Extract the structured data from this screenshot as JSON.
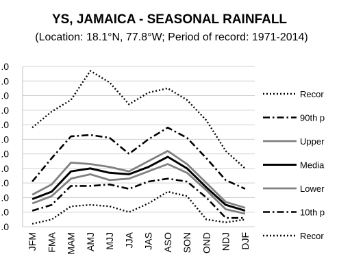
{
  "chart_data": {
    "type": "line",
    "title": "YS, JAMAICA - SEASONAL RAINFALL",
    "subtitle": "(Location: 18.1°N, 77.8°W; Period of record: 1971-2014)",
    "categories": [
      "JFM",
      "FMA",
      "MAM",
      "AMJ",
      "MJJ",
      "JJA",
      "JAS",
      "ASO",
      "SON",
      "OND",
      "NDJ",
      "DJF"
    ],
    "ylim": [
      0,
      1.1
    ],
    "ytick_labels": [
      ".0",
      ".0",
      ".0",
      ".0",
      ".0",
      ".0",
      ".0",
      ".0",
      ".0",
      ".0",
      ".0",
      ".0"
    ],
    "grid": true,
    "legend_position": "right",
    "series": [
      {
        "name": "Recor",
        "style": "dotted",
        "color": "#000000",
        "values": [
          0.68,
          0.79,
          0.87,
          1.07,
          0.99,
          0.84,
          0.92,
          0.95,
          0.87,
          0.73,
          0.52,
          0.4
        ]
      },
      {
        "name": "90th p",
        "style": "dashdot",
        "color": "#000000",
        "values": [
          0.31,
          0.47,
          0.62,
          0.63,
          0.61,
          0.5,
          0.6,
          0.68,
          0.61,
          0.47,
          0.32,
          0.26
        ]
      },
      {
        "name": "Upper",
        "style": "solid",
        "color": "#808080",
        "values": [
          0.22,
          0.29,
          0.44,
          0.43,
          0.41,
          0.38,
          0.45,
          0.52,
          0.43,
          0.3,
          0.17,
          0.13
        ]
      },
      {
        "name": "Media",
        "style": "solid",
        "color": "#000000",
        "values": [
          0.19,
          0.24,
          0.38,
          0.4,
          0.37,
          0.36,
          0.41,
          0.48,
          0.4,
          0.27,
          0.15,
          0.11
        ]
      },
      {
        "name": "Lower",
        "style": "solid",
        "color": "#808080",
        "values": [
          0.16,
          0.21,
          0.33,
          0.36,
          0.32,
          0.33,
          0.38,
          0.43,
          0.37,
          0.25,
          0.12,
          0.09
        ]
      },
      {
        "name": "10th p",
        "style": "dashdot",
        "color": "#000000",
        "values": [
          0.11,
          0.15,
          0.28,
          0.28,
          0.29,
          0.26,
          0.31,
          0.33,
          0.31,
          0.2,
          0.06,
          0.06
        ]
      },
      {
        "name": "Recor",
        "style": "dotted",
        "color": "#000000",
        "values": [
          0.02,
          0.05,
          0.14,
          0.15,
          0.14,
          0.1,
          0.16,
          0.24,
          0.21,
          0.05,
          0.03,
          0.05
        ]
      }
    ]
  }
}
